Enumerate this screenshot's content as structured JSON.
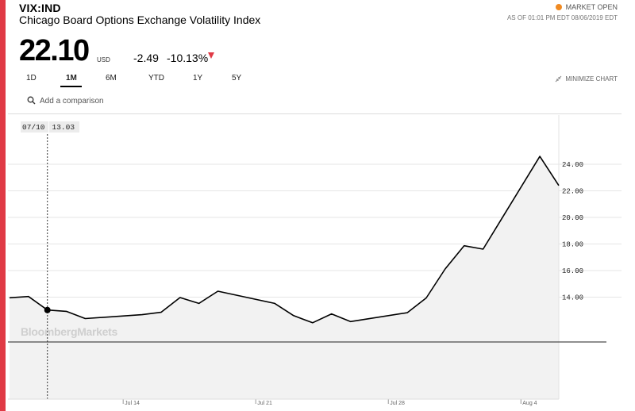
{
  "quote": {
    "ticker": "VIX:IND",
    "name": "Chicago Board Options Exchange Volatility Index",
    "price": "22.10",
    "currency": "USD",
    "change": "-2.49",
    "change_pct": "-10.13%",
    "market_status": "MARKET OPEN",
    "as_of": "AS OF 01:01 PM EDT 08/06/2019 EDT"
  },
  "tabs": [
    {
      "label": "1D",
      "active": false
    },
    {
      "label": "1M",
      "active": true
    },
    {
      "label": "6M",
      "active": false
    },
    {
      "label": "YTD",
      "active": false
    },
    {
      "label": "1Y",
      "active": false
    },
    {
      "label": "5Y",
      "active": false
    }
  ],
  "toolbar": {
    "minimize_label": "MINIMIZE CHART"
  },
  "comparison": {
    "placeholder": "Add a comparison"
  },
  "tooltip": {
    "date": "07/10",
    "value": "13.03"
  },
  "watermark": "BloombergMarkets",
  "icons": {
    "search": "search-icon",
    "collapse": "collapse-arrows-icon",
    "status": "status-dot-icon",
    "down": "down-triangle-icon"
  },
  "colors": {
    "accent": "#e03a45",
    "status_dot": "#f08a22",
    "line": "#000000",
    "area": "#f2f2f2"
  },
  "chart_data": {
    "type": "area",
    "title": "",
    "xlabel": "",
    "ylabel": "",
    "ylim": [
      10.5,
      27.0
    ],
    "y_ticks": [
      14.0,
      16.0,
      18.0,
      20.0,
      22.0,
      24.0
    ],
    "y_tick_labels": [
      "14.00",
      "16.00",
      "18.00",
      "20.00",
      "22.00",
      "24.00"
    ],
    "x_tick_labels": [
      "Jul 14",
      "Jul 21",
      "Jul 28",
      "Aug 4"
    ],
    "grid": "horizontal",
    "series": [
      {
        "points": [
          {
            "x": "Jul 8",
            "y": 13.95
          },
          {
            "x": "Jul 9",
            "y": 14.05
          },
          {
            "x": "Jul 10",
            "y": 13.03
          },
          {
            "x": "Jul 11",
            "y": 12.93
          },
          {
            "x": "Jul 12",
            "y": 12.39
          },
          {
            "x": "Jul 15",
            "y": 12.68
          },
          {
            "x": "Jul 16",
            "y": 12.86
          },
          {
            "x": "Jul 17",
            "y": 13.97
          },
          {
            "x": "Jul 18",
            "y": 13.53
          },
          {
            "x": "Jul 19",
            "y": 14.45
          },
          {
            "x": "Jul 22",
            "y": 13.53
          },
          {
            "x": "Jul 23",
            "y": 12.61
          },
          {
            "x": "Jul 24",
            "y": 12.07
          },
          {
            "x": "Jul 25",
            "y": 12.74
          },
          {
            "x": "Jul 26",
            "y": 12.16
          },
          {
            "x": "Jul 29",
            "y": 12.83
          },
          {
            "x": "Jul 30",
            "y": 13.94
          },
          {
            "x": "Jul 31",
            "y": 16.12
          },
          {
            "x": "Aug 1",
            "y": 17.87
          },
          {
            "x": "Aug 2",
            "y": 17.61
          },
          {
            "x": "Aug 5",
            "y": 24.59
          },
          {
            "x": "Aug 6",
            "y": 22.4
          }
        ]
      }
    ]
  }
}
